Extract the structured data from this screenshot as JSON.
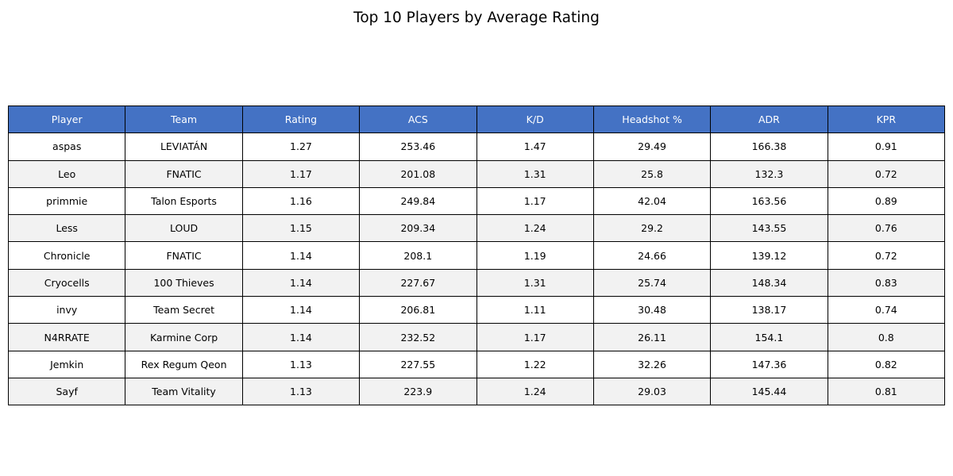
{
  "chart_data": {
    "type": "table",
    "title": "Top 10 Players by Average Rating",
    "columns": [
      "Player",
      "Team",
      "Rating",
      "ACS",
      "K/D",
      "Headshot %",
      "ADR",
      "KPR"
    ],
    "rows": [
      [
        "aspas",
        "LEVIATÁN",
        "1.27",
        "253.46",
        "1.47",
        "29.49",
        "166.38",
        "0.91"
      ],
      [
        "Leo",
        "FNATIC",
        "1.17",
        "201.08",
        "1.31",
        "25.8",
        "132.3",
        "0.72"
      ],
      [
        "primmie",
        "Talon Esports",
        "1.16",
        "249.84",
        "1.17",
        "42.04",
        "163.56",
        "0.89"
      ],
      [
        "Less",
        "LOUD",
        "1.15",
        "209.34",
        "1.24",
        "29.2",
        "143.55",
        "0.76"
      ],
      [
        "Chronicle",
        "FNATIC",
        "1.14",
        "208.1",
        "1.19",
        "24.66",
        "139.12",
        "0.72"
      ],
      [
        "Cryocells",
        "100 Thieves",
        "1.14",
        "227.67",
        "1.31",
        "25.74",
        "148.34",
        "0.83"
      ],
      [
        "invy",
        "Team Secret",
        "1.14",
        "206.81",
        "1.11",
        "30.48",
        "138.17",
        "0.74"
      ],
      [
        "N4RRATE",
        "Karmine Corp",
        "1.14",
        "232.52",
        "1.17",
        "26.11",
        "154.1",
        "0.8"
      ],
      [
        "Jemkin",
        "Rex Regum Qeon",
        "1.13",
        "227.55",
        "1.22",
        "32.26",
        "147.36",
        "0.82"
      ],
      [
        "Sayf",
        "Team Vitality",
        "1.13",
        "223.9",
        "1.24",
        "29.03",
        "145.44",
        "0.81"
      ]
    ],
    "colors": {
      "header_bg": "#4472c4",
      "header_text": "#ffffff",
      "row_even": "#ffffff",
      "row_odd": "#f2f2f2",
      "border": "#000000"
    }
  }
}
